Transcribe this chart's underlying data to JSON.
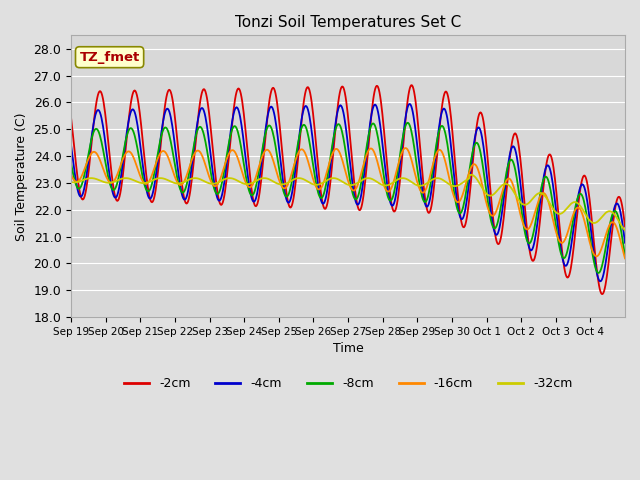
{
  "title": "Tonzi Soil Temperatures Set C",
  "xlabel": "Time",
  "ylabel": "Soil Temperature (C)",
  "ylim": [
    18.0,
    28.5
  ],
  "yticks": [
    18.0,
    19.0,
    20.0,
    21.0,
    22.0,
    23.0,
    24.0,
    25.0,
    26.0,
    27.0,
    28.0
  ],
  "xtick_labels": [
    "Sep 19",
    "Sep 20",
    "Sep 21",
    "Sep 22",
    "Sep 23",
    "Sep 24",
    "Sep 25",
    "Sep 26",
    "Sep 27",
    "Sep 28",
    "Sep 29",
    "Sep 30",
    "Oct 1",
    "Oct 2",
    "Oct 3",
    "Oct 4"
  ],
  "legend_labels": [
    "-2cm",
    "-4cm",
    "-8cm",
    "-16cm",
    "-32cm"
  ],
  "legend_colors": [
    "#dd0000",
    "#0000cc",
    "#00aa00",
    "#ff8800",
    "#cccc00"
  ],
  "bg_color": "#e0e0e0",
  "plot_bg_color": "#d8d8d8",
  "annotation_text": "TZ_fmet",
  "annotation_bg": "#ffffcc",
  "annotation_border": "#888800",
  "annotation_text_color": "#aa0000",
  "n_days": 16,
  "pts_per_day": 48
}
